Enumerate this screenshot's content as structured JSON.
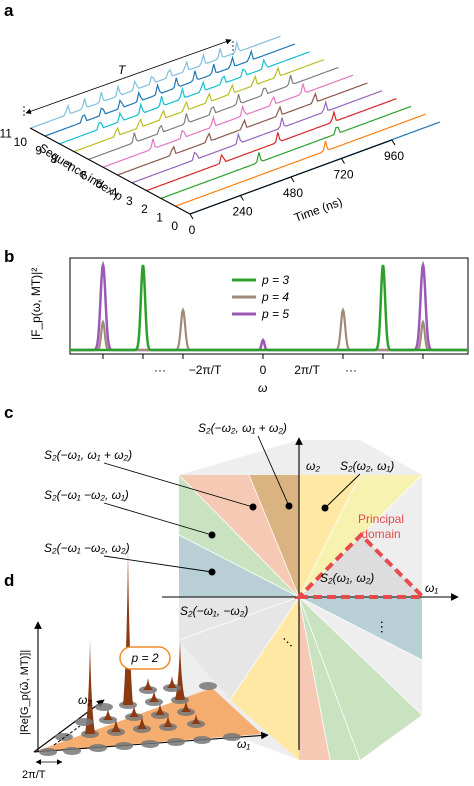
{
  "panel_a": {
    "letter": "a",
    "period_label": "T",
    "yaxis_label": "Sequence index p",
    "xaxis_label": "Time (ns)",
    "sequence_ticks": [
      "11",
      "10",
      "9",
      "8",
      "7",
      "6",
      "5",
      "4",
      "3",
      "2",
      "1",
      "0"
    ],
    "time_ticks": [
      "0",
      "240",
      "480",
      "720",
      "960"
    ],
    "trace_colors": [
      "#1f77b4",
      "#ff7f0e",
      "#2ca02c",
      "#d62728",
      "#9467bd",
      "#8c564b",
      "#e377c2",
      "#7f7f7f",
      "#bcbd22",
      "#17becf",
      "#1f77b4",
      "#7fbfdf"
    ]
  },
  "panel_b": {
    "letter": "b",
    "ylabel": "|F_p(ω, MT)|²",
    "xlabel": "ω",
    "xtick_labels": [
      "···",
      "−2π/T",
      "0",
      "2π/T",
      "···"
    ],
    "legend": [
      {
        "label": "p = 3",
        "color": "#2ca02c"
      },
      {
        "label": "p = 4",
        "color": "#a08a78"
      },
      {
        "label": "p = 5",
        "color": "#9b59b6"
      }
    ]
  },
  "panel_c": {
    "letter": "c",
    "axis_x_label": "ω₁",
    "axis_y_label": "ω₂",
    "region_labels": [
      "S₂(−ω₂, ω₁ + ω₂)",
      "S₂(−ω₁, ω₁ + ω₂)",
      "S₂(ω₂, ω₁)",
      "S₂(−ω₁ −ω₂, ω₁)",
      "S₂(−ω₁ −ω₂, ω₂)",
      "S₂(ω₁, ω₂)",
      "S₂(−ω₁, −ω₂)"
    ],
    "principal_label_1": "Principal",
    "principal_label_2": "domain",
    "dots": "···"
  },
  "panel_d": {
    "letter": "d",
    "zlabel": "|Re[G_p(ω⃗, MT)]|",
    "p_label": "p = 2",
    "axis_label_1": "ω₁",
    "axis_label_2": "ω₂",
    "period_label": "2π/T"
  }
}
